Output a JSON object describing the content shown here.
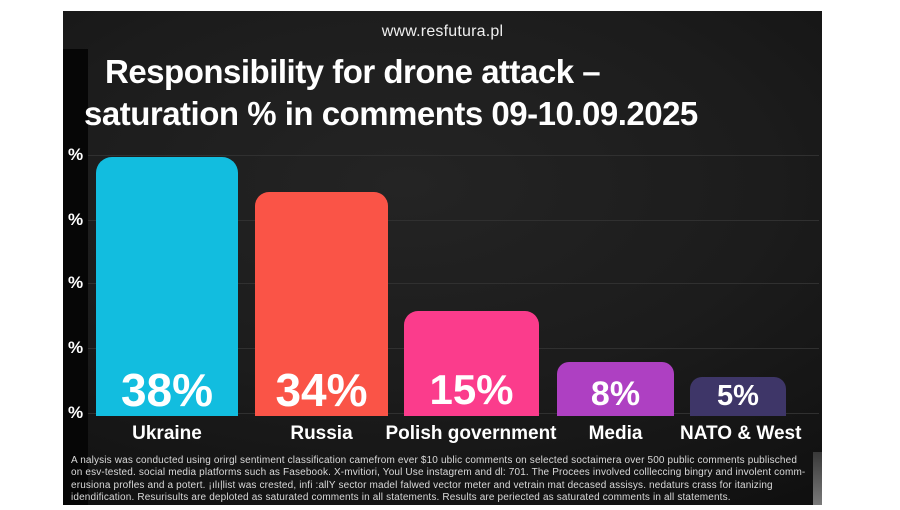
{
  "header": {
    "site_url": "www.resfutura.pl",
    "title_line1": "Responsibility for drone attack –",
    "title_line2": "saturation % in comments 09-10.09.2025"
  },
  "chart_data": {
    "type": "bar",
    "title": "Responsibility for drone attack – saturation % in comments 09-10.09.2025",
    "categories": [
      "Ukraine",
      "Russia",
      "Polish government",
      "Media",
      "NATO & West"
    ],
    "values": [
      38,
      34,
      15,
      8,
      5
    ],
    "value_labels": [
      "38%",
      "34%",
      "15%",
      "8%",
      "5%"
    ],
    "bar_colors": [
      "#12bddf",
      "#fa5447",
      "#fb3c8c",
      "#ae40c2",
      "#3e3668"
    ],
    "ylim": [
      0,
      40
    ],
    "ytick_labels": [
      "%",
      "%",
      "%",
      "%",
      "%"
    ],
    "grid": true,
    "legend": "none",
    "background_color": "#1a1a1a",
    "text_color": "#ffffff"
  },
  "footnote": {
    "lines": [
      "A nalysis was conducted using orirgl sentiment classification camefrom ever $10 ublic comments on selected soctaimera over 500 public comments publisched",
      "on esv-tested. social media platforms such as Fasebook. X-mvitiori, Youl Use  instagrem  and dl: 701. The Procees involved collleccing bingry and involent comm-",
      "erusiona profles and a potert. ¡ılıļlist was crested, infi :allY sector madel falwed  vector meter and vetrain mat decased assisys. nedaturs crass for itanizing",
      "idendification. Resurisults are deploted as saturated comments in all statements. Results are periected as saturated comments in all statements."
    ]
  }
}
